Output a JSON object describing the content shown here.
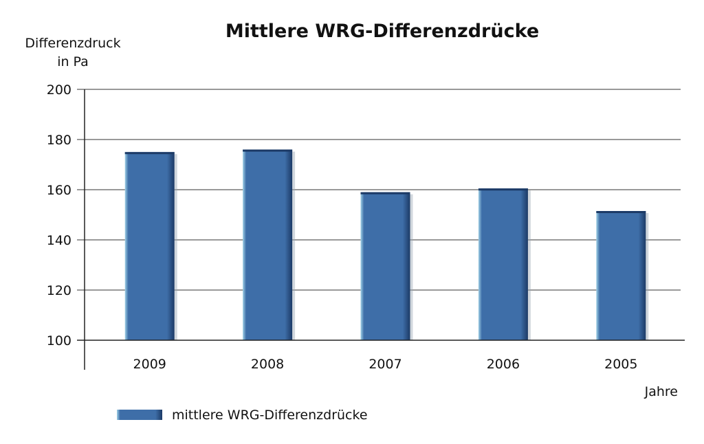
{
  "chart_data": {
    "type": "bar",
    "title": "Mittlere WRG-Differenzdrücke",
    "ylabel_lines": [
      "Differenzdruck",
      "in Pa"
    ],
    "xlabel": "Jahre",
    "categories": [
      "2009",
      "2008",
      "2007",
      "2006",
      "2005"
    ],
    "series": [
      {
        "name": "mittlere WRG-Differenzdrücke",
        "values": [
          175,
          176,
          159,
          160.5,
          151.5
        ]
      }
    ],
    "ylim": [
      100,
      200
    ],
    "yticks": [
      "100",
      "120",
      "140",
      "160",
      "180",
      "200"
    ],
    "grid": true,
    "legend_position": "bottom-left",
    "bar_color": "#3e6ea8",
    "bar_dark": "#1c3a66",
    "bar_light": "#9fd0e6"
  }
}
